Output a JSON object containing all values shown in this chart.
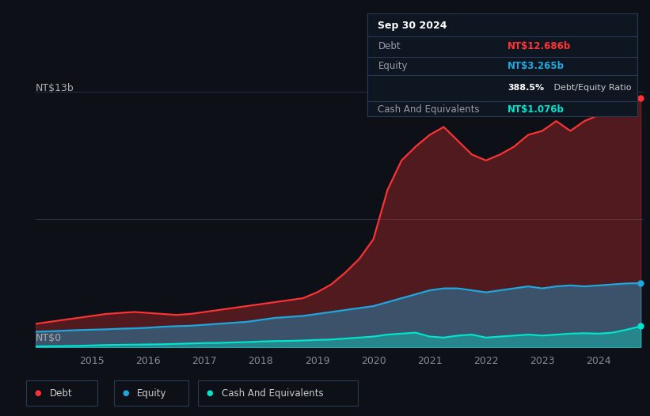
{
  "background_color": "#0d1117",
  "plot_bg_color": "#0d1117",
  "title_box": {
    "date": "Sep 30 2024",
    "debt_label": "Debt",
    "debt_value": "NT$12.686b",
    "equity_label": "Equity",
    "equity_value": "NT$3.265b",
    "ratio_text": "388.5% Debt/Equity Ratio",
    "cash_label": "Cash And Equivalents",
    "cash_value": "NT$1.076b"
  },
  "y_label_top": "NT$13b",
  "y_label_bottom": "NT$0",
  "x_ticks": [
    "2015",
    "2016",
    "2017",
    "2018",
    "2019",
    "2020",
    "2021",
    "2022",
    "2023",
    "2024"
  ],
  "debt_color": "#ff3333",
  "equity_color": "#1ea8e0",
  "cash_color": "#00e5cc",
  "legend": [
    {
      "label": "Debt",
      "color": "#ff3333"
    },
    {
      "label": "Equity",
      "color": "#1ea8e0"
    },
    {
      "label": "Cash And Equivalents",
      "color": "#00e5cc"
    }
  ],
  "years": [
    2014.0,
    2014.25,
    2014.5,
    2014.75,
    2015.0,
    2015.25,
    2015.5,
    2015.75,
    2016.0,
    2016.25,
    2016.5,
    2016.75,
    2017.0,
    2017.25,
    2017.5,
    2017.75,
    2018.0,
    2018.25,
    2018.5,
    2018.75,
    2019.0,
    2019.25,
    2019.5,
    2019.75,
    2020.0,
    2020.25,
    2020.5,
    2020.75,
    2021.0,
    2021.25,
    2021.5,
    2021.75,
    2022.0,
    2022.25,
    2022.5,
    2022.75,
    2023.0,
    2023.25,
    2023.5,
    2023.75,
    2024.0,
    2024.25,
    2024.5,
    2024.75
  ],
  "debt": [
    1.2,
    1.3,
    1.4,
    1.5,
    1.6,
    1.7,
    1.75,
    1.8,
    1.75,
    1.7,
    1.65,
    1.7,
    1.8,
    1.9,
    2.0,
    2.1,
    2.2,
    2.3,
    2.4,
    2.5,
    2.8,
    3.2,
    3.8,
    4.5,
    5.5,
    8.0,
    9.5,
    10.2,
    10.8,
    11.2,
    10.5,
    9.8,
    9.5,
    9.8,
    10.2,
    10.8,
    11.0,
    11.5,
    11.0,
    11.5,
    11.8,
    12.0,
    12.3,
    12.686
  ],
  "equity": [
    0.8,
    0.82,
    0.85,
    0.88,
    0.9,
    0.92,
    0.95,
    0.97,
    1.0,
    1.05,
    1.08,
    1.1,
    1.15,
    1.2,
    1.25,
    1.3,
    1.4,
    1.5,
    1.55,
    1.6,
    1.7,
    1.8,
    1.9,
    2.0,
    2.1,
    2.3,
    2.5,
    2.7,
    2.9,
    3.0,
    3.0,
    2.9,
    2.8,
    2.9,
    3.0,
    3.1,
    3.0,
    3.1,
    3.15,
    3.1,
    3.15,
    3.2,
    3.25,
    3.265
  ],
  "cash": [
    0.05,
    0.06,
    0.07,
    0.08,
    0.1,
    0.12,
    0.13,
    0.14,
    0.15,
    0.16,
    0.18,
    0.2,
    0.22,
    0.23,
    0.25,
    0.27,
    0.3,
    0.32,
    0.33,
    0.35,
    0.38,
    0.4,
    0.45,
    0.5,
    0.55,
    0.65,
    0.7,
    0.75,
    0.55,
    0.5,
    0.6,
    0.65,
    0.5,
    0.55,
    0.6,
    0.65,
    0.6,
    0.65,
    0.7,
    0.72,
    0.7,
    0.75,
    0.9,
    1.076
  ]
}
